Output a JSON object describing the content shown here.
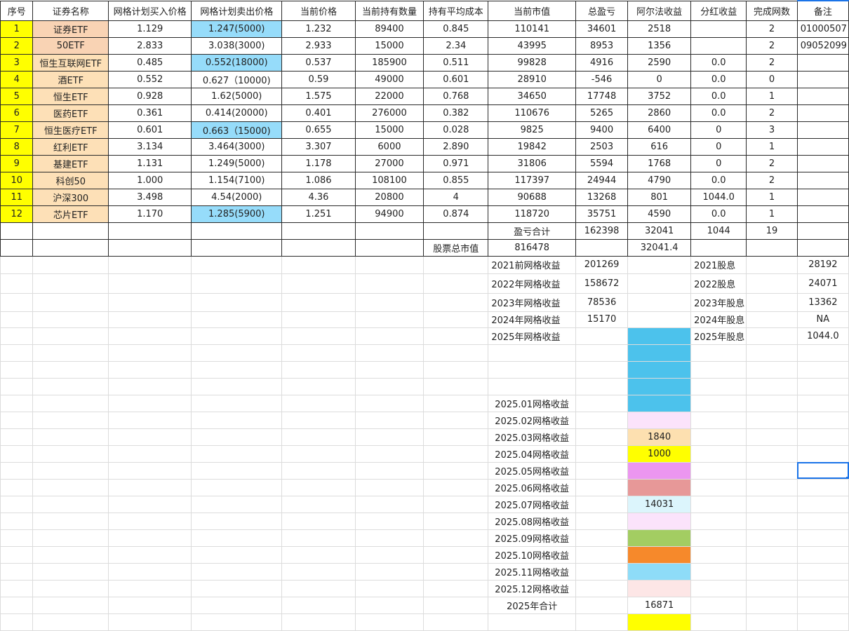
{
  "colors": {
    "seq_bg": "#ffff00",
    "name_bg_a": "#f9d3b4",
    "name_bg_b": "#fde0b7",
    "sell_highlight": "#96dcfa",
    "cell_selection": "#1a73e8"
  },
  "headers": [
    "序号",
    "证券名称",
    "网格计划买入价格",
    "网格计划卖出价格",
    "当前价格",
    "当前持有数量",
    "持有平均成本",
    "当前市值",
    "总盈亏",
    "阿尔法收益",
    "分红收益",
    "完成网数",
    "备注"
  ],
  "rows": [
    {
      "cells": [
        "1",
        "证券ETF",
        "1.129",
        "1.247(5000)",
        "1.232",
        "89400",
        "0.845",
        "110141",
        "34601",
        "2518",
        "",
        "2",
        "01000507"
      ],
      "sell_highlight": true,
      "name_style": "a"
    },
    {
      "cells": [
        "2",
        "50ETF",
        "2.833",
        "3.038(3000)",
        "2.933",
        "15000",
        "2.34",
        "43995",
        "8953",
        "1356",
        "",
        "2",
        "09052099"
      ],
      "sell_highlight": false,
      "name_style": "a"
    },
    {
      "cells": [
        "3",
        "恒生互联网ETF",
        "0.485",
        "0.552(18000)",
        "0.537",
        "185900",
        "0.511",
        "99828",
        "4916",
        "2590",
        "0.0",
        "2",
        ""
      ],
      "sell_highlight": true,
      "name_style": "b"
    },
    {
      "cells": [
        "4",
        "酒ETF",
        "0.552",
        "0.627（10000)",
        "0.59",
        "49000",
        "0.601",
        "28910",
        "-546",
        "0",
        "0.0",
        "0",
        ""
      ],
      "sell_highlight": false,
      "name_style": "b"
    },
    {
      "cells": [
        "5",
        "恒生ETF",
        "0.928",
        "1.62(5000)",
        "1.575",
        "22000",
        "0.768",
        "34650",
        "17748",
        "3752",
        "0.0",
        "1",
        ""
      ],
      "sell_highlight": false,
      "name_style": "b"
    },
    {
      "cells": [
        "6",
        "医药ETF",
        "0.361",
        "0.414(20000)",
        "0.401",
        "276000",
        "0.382",
        "110676",
        "5265",
        "2860",
        "0.0",
        "2",
        ""
      ],
      "sell_highlight": false,
      "name_style": "b"
    },
    {
      "cells": [
        "7",
        "恒生医疗ETF",
        "0.601",
        "0.663（15000)",
        "0.655",
        "15000",
        "0.028",
        "9825",
        "9400",
        "6400",
        "0",
        "3",
        ""
      ],
      "sell_highlight": true,
      "name_style": "b"
    },
    {
      "cells": [
        "8",
        "红利ETF",
        "3.134",
        "3.464(3000)",
        "3.307",
        "6000",
        "2.890",
        "19842",
        "2503",
        "616",
        "0",
        "1",
        ""
      ],
      "sell_highlight": false,
      "name_style": "b"
    },
    {
      "cells": [
        "9",
        "基建ETF",
        "1.131",
        "1.249(5000)",
        "1.178",
        "27000",
        "0.971",
        "31806",
        "5594",
        "1768",
        "0",
        "2",
        ""
      ],
      "sell_highlight": false,
      "name_style": "b"
    },
    {
      "cells": [
        "10",
        "科创50",
        "1.000",
        "1.154(7100)",
        "1.086",
        "108100",
        "0.855",
        "117397",
        "24944",
        "4790",
        "0.0",
        "2",
        ""
      ],
      "sell_highlight": false,
      "name_style": "b"
    },
    {
      "cells": [
        "11",
        "沪深300",
        "3.498",
        "4.54(2000)",
        "4.36",
        "20800",
        "4",
        "90688",
        "13268",
        "801",
        "1044.0",
        "1",
        ""
      ],
      "sell_highlight": false,
      "name_style": "b"
    },
    {
      "cells": [
        "12",
        "芯片ETF",
        "1.170",
        "1.285(5900)",
        "1.251",
        "94900",
        "0.874",
        "118720",
        "35751",
        "4590",
        "0.0",
        "1",
        ""
      ],
      "sell_highlight": true,
      "name_style": "b"
    }
  ],
  "totals": {
    "label": "盈亏合计",
    "total_pnl": "162398",
    "alpha": "32041",
    "dividend": "1044",
    "grids": "19"
  },
  "market": {
    "label": "股票总市值",
    "value": "816478",
    "alpha": "32041.4"
  },
  "yearly": [
    {
      "label": "2021前网格收益",
      "value": "201269",
      "div_label": "2021股息",
      "div_value": "28192"
    },
    {
      "label": "2022年网格收益",
      "value": "158672",
      "div_label": "2022股息",
      "div_value": "24071"
    },
    {
      "label": "2023年网格收益",
      "value": "78536",
      "div_label": "2023年股息",
      "div_value": "13362"
    },
    {
      "label": "2024年网格收益",
      "value": "15170",
      "div_label": "2024年股息",
      "div_value": "NA"
    },
    {
      "label": "2025年网格收益",
      "value": "",
      "div_label": "2025年股息",
      "div_value": "1044.0",
      "fill": "#4cc2ec"
    }
  ],
  "monthly": [
    {
      "label": "",
      "value": "",
      "fill": "#4cc2ec"
    },
    {
      "label": "",
      "value": "",
      "fill": "#4cc2ec"
    },
    {
      "label": "",
      "value": "",
      "fill": "#4cc2ec"
    },
    {
      "label": "2025.01网格收益",
      "value": "",
      "fill": "#4cc2ec"
    },
    {
      "label": "2025.02网格收益",
      "value": "",
      "fill": "#fbe3fb"
    },
    {
      "label": "2025.03网格收益",
      "value": "1840",
      "fill": "#fde0b0"
    },
    {
      "label": "2025.04网格收益",
      "value": "1000",
      "fill": "#ffff00"
    },
    {
      "label": "2025.05网格收益",
      "value": "",
      "fill": "#ec96f0"
    },
    {
      "label": "2025.06网格收益",
      "value": "",
      "fill": "#e79898"
    },
    {
      "label": "2025.07网格收益",
      "value": "14031",
      "fill": "#dcf5fc"
    },
    {
      "label": "2025.08网格收益",
      "value": "",
      "fill": "#fbe3fb"
    },
    {
      "label": "2025.09网格收益",
      "value": "",
      "fill": "#a3cd62"
    },
    {
      "label": "2025.10网格收益",
      "value": "",
      "fill": "#f6892b"
    },
    {
      "label": "2025.11网格收益",
      "value": "",
      "fill": "#8edcf8"
    },
    {
      "label": "2025.12网格收益",
      "value": "",
      "fill": "#fde6e6"
    },
    {
      "label": "2025年合计",
      "value": "16871",
      "fill": "#ffffff"
    },
    {
      "label": "",
      "value": "",
      "fill": "#ffff00"
    }
  ]
}
